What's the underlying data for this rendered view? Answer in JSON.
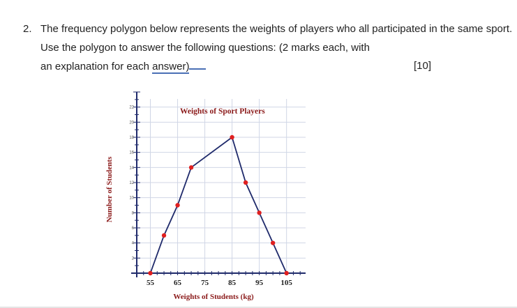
{
  "question": {
    "number": "2.",
    "line1": "The frequency polygon below represents the weights of players who all participated in the same sport.",
    "line2": "Use the polygon to answer the following questions: (2 marks each, with",
    "line3_prefix": "an explanation for each ",
    "line3_link": "answer)",
    "marks": "[10]"
  },
  "chart_data": {
    "type": "line",
    "title": "Weights of Sport Players",
    "xlabel": "Weights of Students (kg)",
    "ylabel": "Number of Students",
    "x_tick_labels": [
      "55",
      "65",
      "75",
      "85",
      "95",
      "105"
    ],
    "y_tick_labels": [
      "2",
      "4",
      "6",
      "8",
      "10",
      "12",
      "14",
      "16",
      "18",
      "20",
      "22"
    ],
    "xlim": [
      50,
      112
    ],
    "ylim": [
      0,
      24
    ],
    "grid": true,
    "series": [
      {
        "x": [
          55,
          60,
          65,
          70,
          85,
          90,
          95,
          100,
          105
        ],
        "y": [
          0,
          5,
          9,
          14,
          18,
          12,
          8,
          4,
          0
        ]
      }
    ],
    "colors": {
      "line": "#1f2a6b",
      "marker": "#e02020",
      "title": "#8b1a1a",
      "axis": "#1f2a6b",
      "grid": "#d0d6e6"
    }
  }
}
